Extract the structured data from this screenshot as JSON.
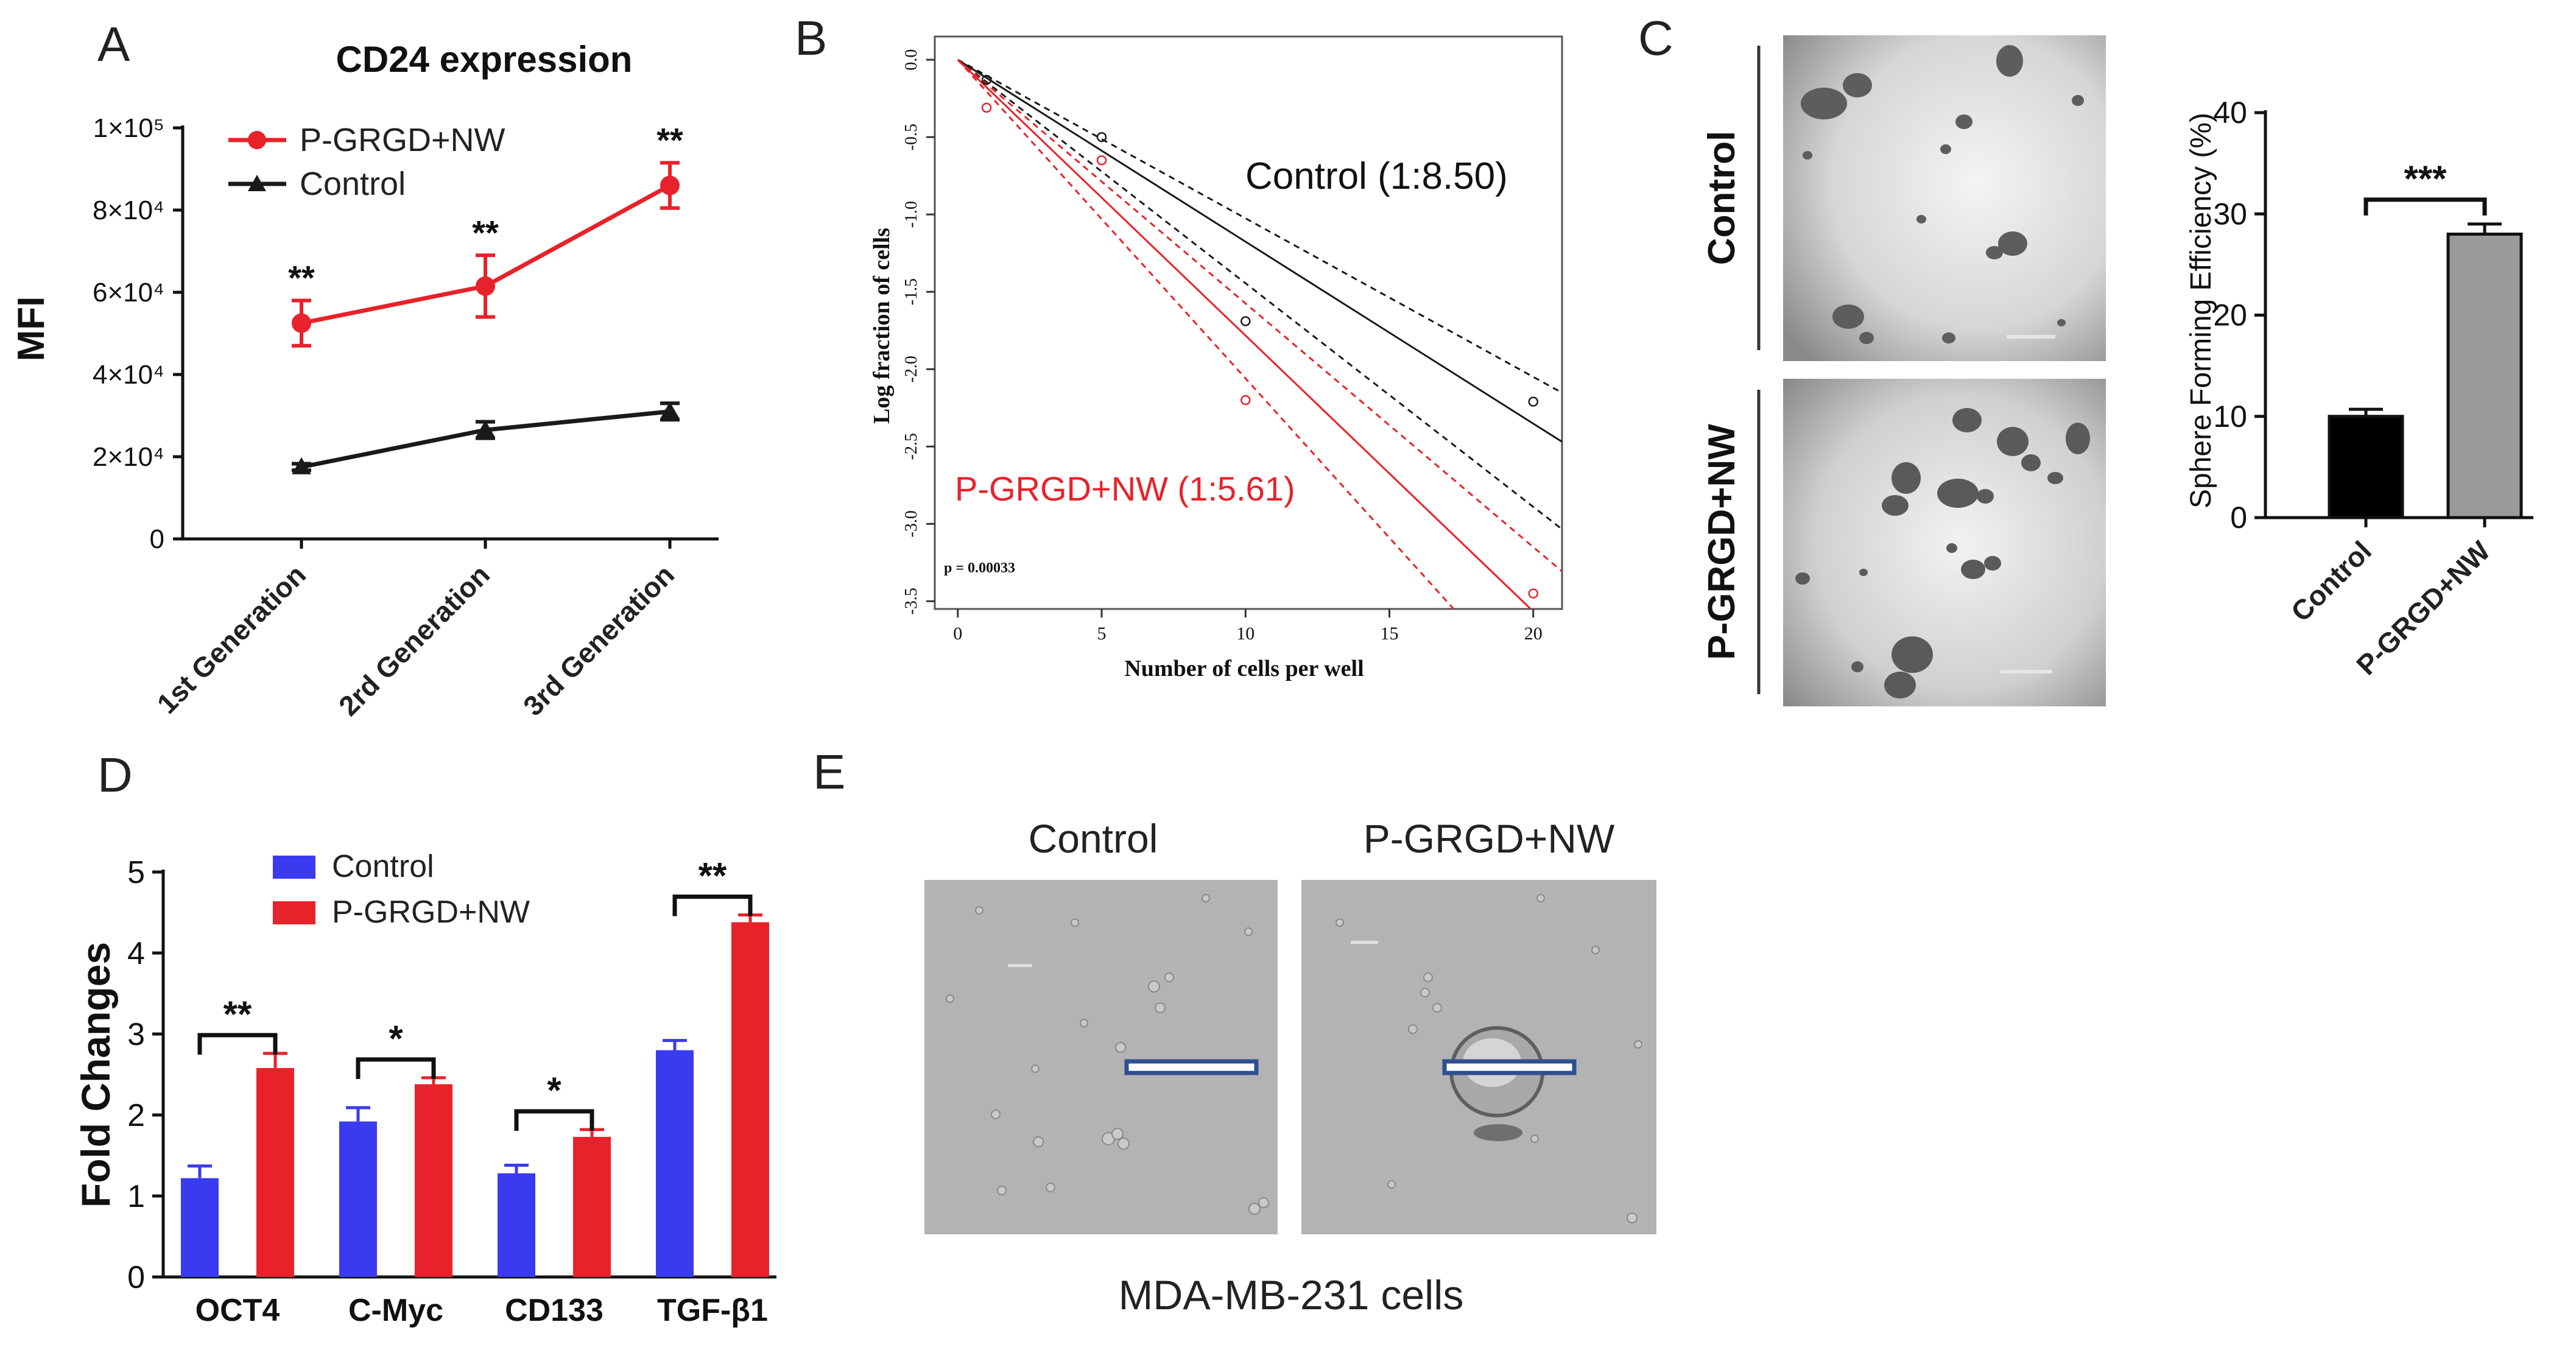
{
  "panel_labels": {
    "a": "A",
    "b": "B",
    "c": "C",
    "d": "D",
    "e": "E"
  },
  "colors": {
    "red": "#e8222a",
    "black": "#1a1a1a",
    "blue": "#3a3af0",
    "gray": "#9a9a9a",
    "scale_bar": "#2f4f8f"
  },
  "chart_data": [
    {
      "id": "A",
      "type": "line",
      "title": "CD24 expression",
      "xlabel": "",
      "ylabel": "MFI",
      "categories": [
        "1st Generation",
        "2rd Generation",
        "3rd Generation"
      ],
      "ylim": [
        0,
        100000
      ],
      "yticks": [
        0,
        20000,
        40000,
        60000,
        80000,
        100000
      ],
      "ytick_labels": [
        "0",
        "2×10⁴",
        "4×10⁴",
        "6×10⁴",
        "8×10⁴",
        "1×10⁵"
      ],
      "series": [
        {
          "name": "P-GRGD+NW",
          "values": [
            52500,
            61500,
            86000
          ],
          "errors": [
            5500,
            7500,
            5500
          ],
          "marker": "circle",
          "color": "#e8222a"
        },
        {
          "name": "Control",
          "values": [
            17500,
            26500,
            31000
          ],
          "errors": [
            800,
            2000,
            2000
          ],
          "marker": "triangle",
          "color": "#1a1a1a"
        }
      ],
      "annotations": [
        "**",
        "**",
        "**"
      ]
    },
    {
      "id": "B",
      "type": "scatter",
      "title": "",
      "xlabel": "Number of cells per well",
      "ylabel": "Log fraction of cells",
      "xlim": [
        -0.8,
        21
      ],
      "ylim": [
        -3.55,
        0.15
      ],
      "xticks": [
        0,
        5,
        10,
        15,
        20
      ],
      "yticks": [
        0.0,
        -0.5,
        -1.0,
        -1.5,
        -2.0,
        -2.5,
        -3.0,
        -3.5
      ],
      "ytick_labels": [
        "0.0",
        "-0.5",
        "-1.0",
        "-1.5",
        "-2.0",
        "-2.5",
        "-3.0",
        "-3.5"
      ],
      "series": [
        {
          "name": "Control",
          "label": "Control (1:8.50)",
          "color": "#1a1a1a",
          "points_x": [
            1,
            5,
            10,
            20
          ],
          "points_y": [
            -0.13,
            -0.5,
            -1.69,
            -2.21
          ],
          "fit_slope": -0.1176,
          "ci_slopes": [
            -0.1025,
            -0.1445
          ]
        },
        {
          "name": "P-GRGD+NW",
          "label": "P-GRGD+NW (1:5.61)",
          "color": "#e8222a",
          "points_x": [
            1,
            5,
            10,
            20
          ],
          "points_y": [
            -0.31,
            -0.65,
            -2.2,
            -3.45
          ],
          "fit_slope": -0.1783,
          "ci_slopes": [
            -0.1575,
            -0.206
          ]
        }
      ],
      "annotation": "p = 0.00033"
    },
    {
      "id": "C",
      "type": "bar",
      "title": "",
      "xlabel": "",
      "ylabel": "Sphere Forming Efficiency (%)",
      "categories": [
        "Control",
        "P-GRGD+NW"
      ],
      "values": [
        10,
        28
      ],
      "errors": [
        0.7,
        1.0
      ],
      "colors": [
        "#000000",
        "#9a9a9a"
      ],
      "ylim": [
        0,
        40
      ],
      "yticks": [
        0,
        10,
        20,
        30,
        40
      ],
      "annotation": "***"
    },
    {
      "id": "D",
      "type": "bar",
      "title": "",
      "xlabel": "",
      "ylabel": "Fold Changes",
      "categories": [
        "OCT4",
        "C-Myc",
        "CD133",
        "TGF-β1"
      ],
      "ylim": [
        0,
        5
      ],
      "yticks": [
        0,
        1,
        2,
        3,
        4,
        5
      ],
      "series": [
        {
          "name": "Control",
          "values": [
            1.22,
            1.92,
            1.28,
            2.8
          ],
          "errors": [
            0.15,
            0.17,
            0.1,
            0.12
          ],
          "color": "#3a3af0"
        },
        {
          "name": "P-GRGD+NW",
          "values": [
            2.58,
            2.38,
            1.73,
            4.38
          ],
          "errors": [
            0.18,
            0.08,
            0.09,
            0.09
          ],
          "color": "#e8222a"
        }
      ],
      "annotations": [
        "**",
        "*",
        "*",
        "**"
      ]
    }
  ],
  "panel_c": {
    "row_labels": [
      "Control",
      "P-GRGD+NW"
    ]
  },
  "panel_e": {
    "titles": [
      "Control",
      "P-GRGD+NW"
    ],
    "caption": "MDA-MB-231 cells"
  }
}
